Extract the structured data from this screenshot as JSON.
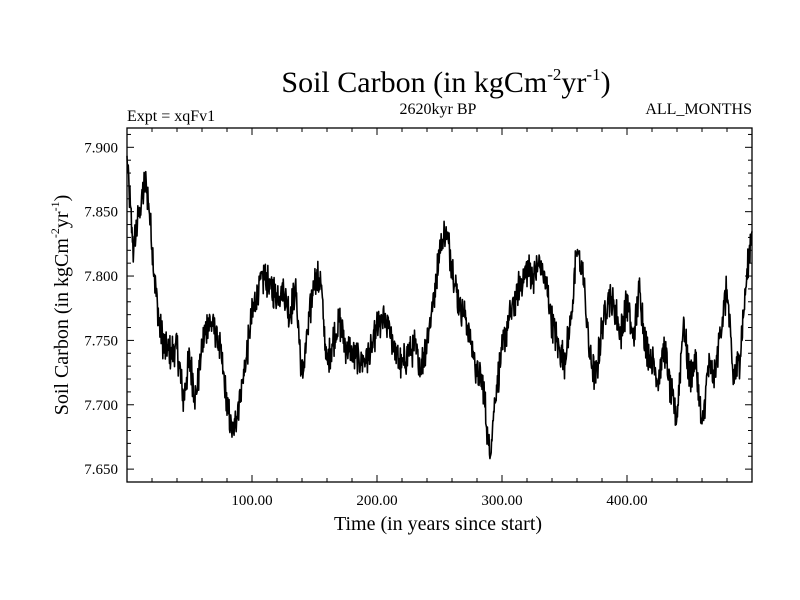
{
  "chart_data": {
    "type": "line",
    "title": {
      "prefix": "Soil Carbon (in kgCm",
      "sup1": "-2",
      "mid": "yr",
      "sup2": "-1",
      "suffix": ")"
    },
    "subtitle_left": "Expt = xqFv1",
    "subtitle_center": "2620kyr BP",
    "subtitle_right": "ALL_MONTHS",
    "xlabel": "Time (in years since start)",
    "ylabel": {
      "prefix": "Soil Carbon (in kgCm",
      "sup1": "-2",
      "mid": "yr",
      "sup2": "-1",
      "suffix": ")"
    },
    "xlim": [
      0,
      500
    ],
    "ylim": [
      7.64,
      7.915
    ],
    "x_ticks": [
      {
        "value": 100,
        "label": "100.00"
      },
      {
        "value": 200,
        "label": "200.00"
      },
      {
        "value": 300,
        "label": "300.00"
      },
      {
        "value": 400,
        "label": "400.00"
      }
    ],
    "y_ticks": [
      {
        "value": 7.65,
        "label": "7.650"
      },
      {
        "value": 7.7,
        "label": "7.700"
      },
      {
        "value": 7.75,
        "label": "7.750"
      },
      {
        "value": 7.8,
        "label": "7.800"
      },
      {
        "value": 7.85,
        "label": "7.850"
      },
      {
        "value": 7.9,
        "label": "7.900"
      }
    ],
    "series": [
      {
        "name": "Soil Carbon",
        "color": "#000000",
        "x": [
          0,
          5,
          8,
          12,
          15,
          18,
          22,
          26,
          30,
          35,
          40,
          45,
          50,
          55,
          60,
          65,
          70,
          75,
          80,
          85,
          88,
          92,
          96,
          100,
          105,
          110,
          115,
          120,
          125,
          130,
          135,
          140,
          145,
          150,
          155,
          160,
          165,
          170,
          175,
          180,
          185,
          190,
          195,
          200,
          205,
          210,
          215,
          220,
          225,
          230,
          235,
          240,
          245,
          250,
          255,
          260,
          265,
          270,
          275,
          280,
          285,
          290,
          295,
          300,
          305,
          310,
          315,
          320,
          325,
          330,
          335,
          340,
          345,
          350,
          355,
          360,
          365,
          370,
          375,
          380,
          385,
          390,
          395,
          400,
          405,
          410,
          415,
          420,
          425,
          430,
          435,
          440,
          445,
          450,
          455,
          460,
          465,
          470,
          475,
          480,
          485,
          490,
          495,
          500
        ],
        "y": [
          7.89,
          7.82,
          7.84,
          7.86,
          7.875,
          7.85,
          7.8,
          7.76,
          7.745,
          7.74,
          7.745,
          7.705,
          7.735,
          7.705,
          7.745,
          7.765,
          7.76,
          7.74,
          7.7,
          7.675,
          7.695,
          7.715,
          7.74,
          7.77,
          7.79,
          7.8,
          7.79,
          7.785,
          7.79,
          7.77,
          7.79,
          7.72,
          7.76,
          7.8,
          7.795,
          7.73,
          7.75,
          7.765,
          7.745,
          7.74,
          7.735,
          7.735,
          7.74,
          7.76,
          7.765,
          7.76,
          7.74,
          7.73,
          7.74,
          7.745,
          7.73,
          7.75,
          7.78,
          7.82,
          7.835,
          7.81,
          7.78,
          7.77,
          7.75,
          7.725,
          7.715,
          7.66,
          7.71,
          7.74,
          7.765,
          7.78,
          7.795,
          7.805,
          7.8,
          7.81,
          7.795,
          7.765,
          7.745,
          7.735,
          7.765,
          7.82,
          7.8,
          7.74,
          7.72,
          7.76,
          7.785,
          7.775,
          7.755,
          7.78,
          7.75,
          7.79,
          7.745,
          7.735,
          7.72,
          7.745,
          7.71,
          7.69,
          7.765,
          7.72,
          7.735,
          7.68,
          7.73,
          7.72,
          7.76,
          7.79,
          7.72,
          7.735,
          7.79,
          7.84
        ]
      }
    ]
  }
}
